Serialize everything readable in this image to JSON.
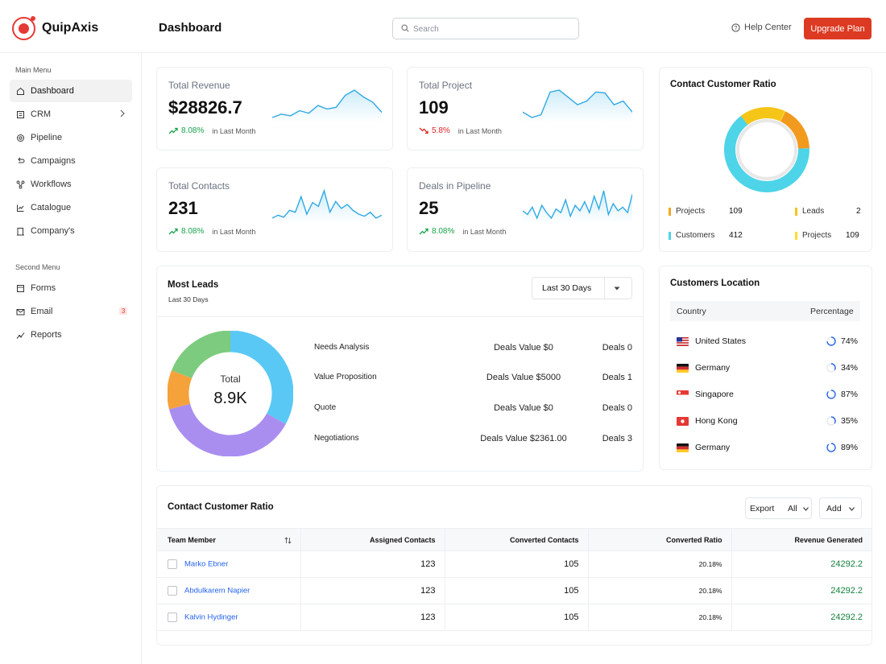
{
  "app": {
    "name": "QuipAxis"
  },
  "header": {
    "page_title": "Dashboard",
    "search_placeholder": "Search",
    "help_label": "Help Center",
    "upgrade_label": "Upgrade Plan"
  },
  "sidebar": {
    "main_heading": "Main Menu",
    "main_items": [
      {
        "label": "Dashboard",
        "icon": "home-icon"
      },
      {
        "label": "CRM",
        "icon": "crm-icon"
      },
      {
        "label": "Pipeline",
        "icon": "pipeline-icon"
      },
      {
        "label": "Campaigns",
        "icon": "campaigns-icon"
      },
      {
        "label": "Workflows",
        "icon": "workflows-icon"
      },
      {
        "label": "Catalogue",
        "icon": "catalogue-icon"
      },
      {
        "label": "Company's",
        "icon": "company-icon"
      }
    ],
    "second_heading": "Second Menu",
    "second_items": [
      {
        "label": "Forms",
        "icon": "forms-icon"
      },
      {
        "label": "Email",
        "icon": "email-icon",
        "badge": "3"
      },
      {
        "label": "Reports",
        "icon": "reports-icon"
      }
    ]
  },
  "stats": [
    {
      "label": "Total Revenue",
      "value": "$28826.7",
      "trend": "8.08%",
      "direction": "up",
      "note": "in Last Month",
      "spark": [
        30,
        34,
        32,
        38,
        35,
        44,
        40,
        42,
        56,
        62,
        54,
        48,
        36
      ]
    },
    {
      "label": "Total Project",
      "value": "109",
      "trend": "5.8%",
      "direction": "down",
      "note": "in Last Month",
      "spark": [
        36,
        30,
        33,
        58,
        60,
        52,
        44,
        48,
        58,
        57,
        44,
        48,
        36
      ]
    },
    {
      "label": "Total Contacts",
      "value": "231",
      "trend": "8.08%",
      "direction": "up",
      "note": "in Last Month",
      "spark": [
        30,
        33,
        31,
        38,
        36,
        52,
        34,
        46,
        42,
        58,
        36,
        47,
        40,
        44,
        38,
        34,
        32,
        36,
        30,
        33
      ]
    },
    {
      "label": "Deals in Pipeline",
      "value": "25",
      "trend": "8.08%",
      "direction": "up",
      "note": "in Last Month",
      "spark": [
        38,
        34,
        42,
        30,
        44,
        36,
        30,
        40,
        36,
        50,
        32,
        44,
        38,
        48,
        36,
        54,
        40,
        60,
        34,
        46,
        38,
        42,
        36,
        56
      ]
    }
  ],
  "contact_ratio": {
    "title": "Contact Customer Ratio",
    "segments": [
      {
        "name": "Customers",
        "value": 412,
        "color": "#4dd4e8"
      },
      {
        "name": "Projects",
        "value": 109,
        "color": "#f5c518"
      },
      {
        "name": "Leads",
        "value": 2,
        "color": "#f9df2c"
      },
      {
        "name": "Projects",
        "value": 109,
        "color": "#f29a1e"
      }
    ],
    "legend": [
      {
        "label": "Projects",
        "value": "109",
        "color": "#f5a623"
      },
      {
        "label": "Leads",
        "value": "2",
        "color": "#f5c518"
      },
      {
        "label": "Customers",
        "value": "412",
        "color": "#4dd4e8"
      },
      {
        "label": "Projects",
        "value": "109",
        "color": "#f9e02c"
      }
    ]
  },
  "most_leads": {
    "title": "Most Leads",
    "subtitle": "Last 30 Days",
    "range": "Last 30 Days",
    "total_label": "Total",
    "total_value": "8.9K",
    "donut": [
      {
        "name": "blue",
        "value": 33,
        "color": "#5ac8f5"
      },
      {
        "name": "purple",
        "value": 38,
        "color": "#a98ef0"
      },
      {
        "name": "orange",
        "value": 10,
        "color": "#f5a23a"
      },
      {
        "name": "green",
        "value": 19,
        "color": "#7ccb7e"
      }
    ],
    "stages": [
      {
        "name": "Needs Analysis",
        "value": "Deals Value $0",
        "deals": "Deals 0"
      },
      {
        "name": "Value Proposition",
        "value": "Deals Value $5000",
        "deals": "Deals 1"
      },
      {
        "name": "Quote",
        "value": "Deals Value $0",
        "deals": "Deals 0"
      },
      {
        "name": "Negotiations",
        "value": "Deals Value $2361.00",
        "deals": "Deals 3"
      }
    ]
  },
  "locations": {
    "title": "Customers Location",
    "col_country": "Country",
    "col_percentage": "Percentage",
    "rows": [
      {
        "country": "United States",
        "pct": "74%",
        "value": 74,
        "flag": "us"
      },
      {
        "country": "Germany",
        "pct": "34%",
        "value": 34,
        "flag": "de"
      },
      {
        "country": "Singapore",
        "pct": "87%",
        "value": 87,
        "flag": "sg"
      },
      {
        "country": "Hong Kong",
        "pct": "35%",
        "value": 35,
        "flag": "hk"
      },
      {
        "country": "Germany",
        "pct": "89%",
        "value": 89,
        "flag": "de"
      }
    ]
  },
  "team_table": {
    "title": "Contact Customer Ratio",
    "export_label": "Export",
    "filter_value": "All",
    "add_label": "Add",
    "columns": [
      "Team Member",
      "Assigned Contacts",
      "Converted Contacts",
      "Converted Ratio",
      "Revenue Generated"
    ],
    "rows": [
      {
        "member": "Marko Ebner",
        "assigned": "123",
        "converted": "105",
        "ratio": "20.18%",
        "revenue": "24292.2"
      },
      {
        "member": "Abdulkarem Napier",
        "assigned": "123",
        "converted": "105",
        "ratio": "20.18%",
        "revenue": "24292.2"
      },
      {
        "member": "Kalvin Hydinger",
        "assigned": "123",
        "converted": "105",
        "ratio": "20.18%",
        "revenue": "24292.2"
      }
    ]
  }
}
